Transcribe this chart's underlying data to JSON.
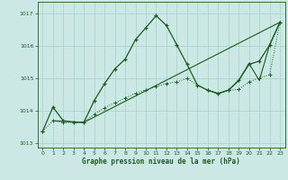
{
  "title": "Graphe pression niveau de la mer (hPa)",
  "bg_color": "#cce8e4",
  "grid_color": "#aad4d0",
  "line_color": "#1a5c1a",
  "xlim": [
    -0.5,
    23.5
  ],
  "ylim": [
    1012.85,
    1017.35
  ],
  "yticks": [
    1013,
    1014,
    1015,
    1016,
    1017
  ],
  "xticks": [
    0,
    1,
    2,
    3,
    4,
    5,
    6,
    7,
    8,
    9,
    10,
    11,
    12,
    13,
    14,
    15,
    16,
    17,
    18,
    19,
    20,
    21,
    22,
    23
  ],
  "series1_x": [
    0,
    1,
    2,
    3,
    4,
    5,
    6,
    7,
    8,
    9,
    10,
    11,
    12,
    13,
    14,
    15,
    16,
    17,
    18,
    19,
    20,
    21,
    22,
    23
  ],
  "series1_y": [
    1013.35,
    1014.1,
    1013.68,
    1013.63,
    1013.63,
    1014.3,
    1014.82,
    1015.28,
    1015.58,
    1016.18,
    1016.55,
    1016.92,
    1016.62,
    1016.02,
    1015.42,
    1014.78,
    1014.62,
    1014.52,
    1014.62,
    1014.92,
    1015.42,
    1015.52,
    1016.02,
    1016.72
  ],
  "series2_x": [
    0,
    1,
    2,
    3,
    4,
    5,
    6,
    7,
    8,
    9,
    10,
    11,
    12,
    13,
    14,
    15,
    16,
    17,
    18,
    19,
    20,
    21,
    22,
    23
  ],
  "series2_y": [
    1013.35,
    1013.68,
    1013.62,
    1013.63,
    1013.63,
    1013.88,
    1014.08,
    1014.23,
    1014.38,
    1014.53,
    1014.63,
    1014.73,
    1014.83,
    1014.88,
    1014.98,
    1014.78,
    1014.62,
    1014.52,
    1014.62,
    1014.65,
    1014.88,
    1015.0,
    1015.1,
    1016.72
  ],
  "series3_x": [
    1,
    4,
    23
  ],
  "series3_y": [
    1013.68,
    1013.63,
    1016.72
  ],
  "series4_x": [
    16,
    17,
    18,
    19,
    20,
    21,
    22,
    23
  ],
  "series4_y": [
    1014.62,
    1014.52,
    1014.62,
    1014.92,
    1015.45,
    1014.92,
    1016.02,
    1016.72
  ]
}
